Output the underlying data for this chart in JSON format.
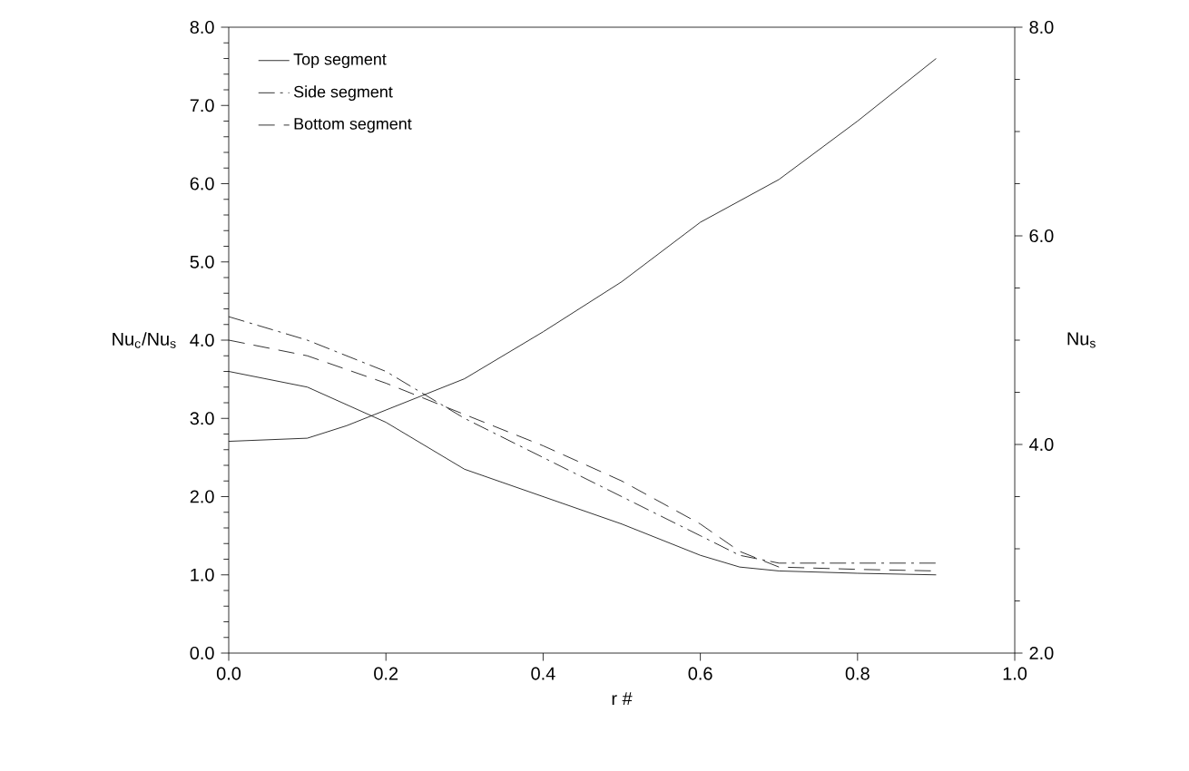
{
  "chart_data": {
    "type": "line",
    "xlabel": "r #",
    "ylabel": "Nu$_{c}$/Nu$_{s}$",
    "y2label": "Nu$_{s}$",
    "xlim": [
      0,
      1
    ],
    "ylim": [
      0,
      8
    ],
    "y2lim": [
      2,
      8
    ],
    "xticks": [
      {
        "value": 0,
        "label": "0.0"
      },
      {
        "value": 0.2,
        "label": "0.2"
      },
      {
        "value": 0.4,
        "label": "0.4"
      },
      {
        "value": 0.6,
        "label": "0.6"
      },
      {
        "value": 0.8,
        "label": "0.8"
      },
      {
        "value": 1,
        "label": "1.0"
      }
    ],
    "yticks": [
      {
        "value": 0,
        "label": "0.0"
      },
      {
        "value": 1,
        "label": "1.0"
      },
      {
        "value": 2,
        "label": "2.0"
      },
      {
        "value": 3,
        "label": "3.0"
      },
      {
        "value": 4,
        "label": "4.0"
      },
      {
        "value": 5,
        "label": "5.0"
      },
      {
        "value": 6,
        "label": "6.0"
      },
      {
        "value": 7,
        "label": "7.0"
      },
      {
        "value": 8,
        "label": "8.0"
      }
    ],
    "y2ticks": [
      {
        "value": 2,
        "label": "2.0"
      },
      {
        "value": 4,
        "label": "4.0"
      },
      {
        "value": 6,
        "label": "6.0"
      },
      {
        "value": 8,
        "label": "8.0"
      }
    ],
    "grid": false,
    "legend": "top left",
    "marker": "none",
    "x": [
      0,
      0.1,
      0.2,
      0.3,
      0.4,
      0.5,
      0.6,
      0.65,
      0.7,
      0.8,
      0.9
    ],
    "series": [
      {
        "name": "Top segment",
        "color": "#000000",
        "line_style": "solid",
        "values": [
          3.6,
          3.4,
          2.95,
          2.35,
          2.0,
          1.65,
          1.25,
          1.1,
          1.05,
          1.02,
          1.0
        ]
      },
      {
        "name": "Side segment",
        "color": "#000000",
        "line_style": "dashdot",
        "values": [
          4.3,
          4.0,
          3.6,
          3.0,
          2.5,
          2.0,
          1.5,
          1.25,
          1.15,
          1.15,
          1.15
        ]
      },
      {
        "name": "Bottom segment",
        "color": "#000000",
        "line_style": "dashed",
        "values": [
          4.0,
          3.8,
          3.45,
          3.05,
          2.65,
          2.2,
          1.65,
          1.3,
          1.1,
          1.07,
          1.05
        ]
      },
      {
        "color": "#000000",
        "line_style": "solid",
        "axis": "y2",
        "x": [
          0,
          0.1,
          0.15,
          0.2,
          0.3,
          0.4,
          0.5,
          0.6,
          0.7,
          0.8,
          0.9
        ],
        "values": [
          4.03,
          4.06,
          4.18,
          4.33,
          4.63,
          5.08,
          5.56,
          6.13,
          6.54,
          7.1,
          7.7
        ]
      }
    ]
  }
}
